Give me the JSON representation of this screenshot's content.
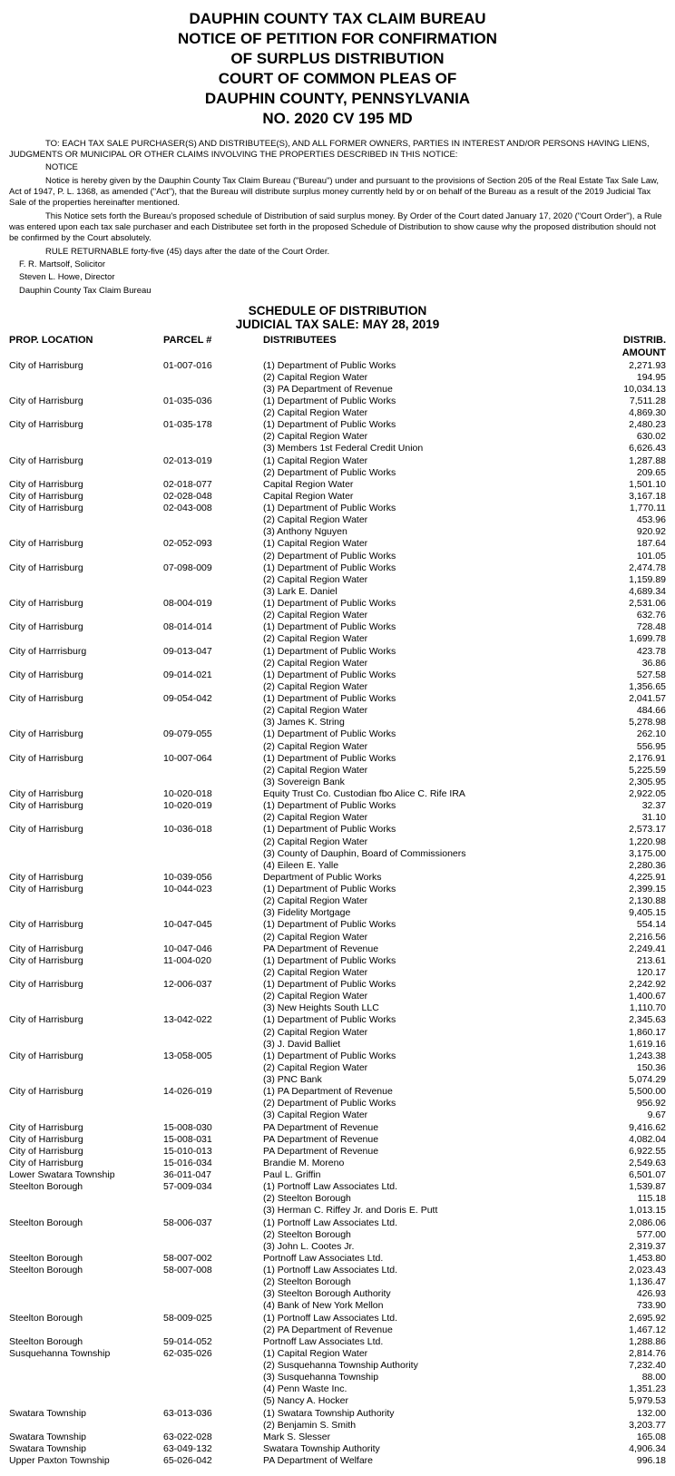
{
  "header": {
    "l1": "DAUPHIN COUNTY TAX CLAIM BUREAU",
    "l2": "NOTICE OF PETITION FOR CONFIRMATION",
    "l3": "OF SURPLUS DISTRIBUTION",
    "l4": "COURT OF COMMON PLEAS OF",
    "l5": "DAUPHIN COUNTY, PENNSYLVANIA",
    "l6": "NO.  2020 CV 195 MD"
  },
  "notice": {
    "p1": "TO:  EACH TAX SALE PURCHASER(S) AND DISTRIBUTEE(S), AND ALL FORMER OWNERS, PARTIES IN INTEREST AND/OR PERSONS HAVING LIENS, JUDGMENTS OR MUNICIPAL OR OTHER CLAIMS INVOLVING THE PROPERTIES DESCRIBED IN THIS NOTICE:",
    "p2": "NOTICE",
    "p3": "Notice is hereby given by the Dauphin County Tax Claim Bureau (\"Bureau\") under and pursuant to the provisions of Section 205 of the Real Estate Tax Sale Law, Act of 1947, P. L. 1368, as amended (\"Act\"), that the Bureau will distribute surplus money currently held by or on behalf of the Bureau as a result of the 2019 Judicial Tax Sale of the properties hereinafter mentioned.",
    "p4": "This Notice sets forth the Bureau's proposed schedule of Distribution of said surplus money.  By Order of the Court dated January 17, 2020 (\"Court Order\"), a Rule was entered upon each tax sale purchaser and each Distributee set forth in the proposed Schedule of Distribution to show cause why the proposed distribution should not be confirmed by the Court absolutely.",
    "p5": "RULE RETURNABLE forty-five (45) days after the date of the Court Order.",
    "s1": "F. R. Martsolf, Solicitor",
    "s2": "Steven L. Howe, Director",
    "s3": "Dauphin County Tax Claim Bureau"
  },
  "schedule": {
    "title": "SCHEDULE OF DISTRIBUTION",
    "sub": "JUDICIAL TAX SALE:   MAY 28, 2019",
    "cols": {
      "loc": "PROP. LOCATION",
      "parcel": "PARCEL #",
      "dist": "DISTRIBUTEES",
      "amt": "DISTRIB.  AMOUNT"
    },
    "rows": [
      {
        "loc": "City of Harrisburg",
        "parcel": "01-007-016",
        "d": [
          [
            "(1) Department of Public Works",
            "2,271.93"
          ],
          [
            "(2) Capital Region Water",
            "194.95"
          ],
          [
            "(3) PA Department of Revenue",
            "10,034.13"
          ]
        ]
      },
      {
        "loc": "City of Harrisburg",
        "parcel": "01-035-036",
        "d": [
          [
            "(1) Department of Public Works",
            "7,511.28"
          ],
          [
            "(2) Capital Region Water",
            "4,869.30"
          ]
        ]
      },
      {
        "loc": "City of Harrisburg",
        "parcel": "01-035-178",
        "d": [
          [
            "(1) Department of Public Works",
            "2,480.23"
          ],
          [
            "(2) Capital Region Water",
            "630.02"
          ],
          [
            "(3) Members 1st Federal Credit Union",
            "6,626.43"
          ]
        ]
      },
      {
        "loc": "City of Harrisburg",
        "parcel": "02-013-019",
        "d": [
          [
            "(1) Capital Region Water",
            "1,287.88"
          ],
          [
            "(2) Department of Public Works",
            "209.65"
          ]
        ]
      },
      {
        "loc": "City of Harrisburg",
        "parcel": "02-018-077",
        "d": [
          [
            "Capital Region Water",
            "1,501.10"
          ]
        ]
      },
      {
        "loc": "City of Harrisburg",
        "parcel": "02-028-048",
        "d": [
          [
            "Capital Region Water",
            "3,167.18"
          ]
        ]
      },
      {
        "loc": "City of Harrisburg",
        "parcel": "02-043-008",
        "d": [
          [
            "(1) Department of Public Works",
            "1,770.11"
          ],
          [
            "(2) Capital Region Water",
            "453.96"
          ],
          [
            "(3) Anthony Nguyen",
            "920.92"
          ]
        ]
      },
      {
        "loc": "City of Harrisburg",
        "parcel": "02-052-093",
        "d": [
          [
            "(1) Capital Region Water",
            "187.64"
          ],
          [
            "(2) Department of Public Works",
            "101.05"
          ]
        ]
      },
      {
        "loc": "City of Harrisburg",
        "parcel": "07-098-009",
        "d": [
          [
            "(1) Department of Public Works",
            "2,474.78"
          ],
          [
            "(2) Capital Region Water",
            "1,159.89"
          ],
          [
            "(3) Lark E. Daniel",
            "4,689.34"
          ]
        ]
      },
      {
        "loc": "City of Harrisburg",
        "parcel": "08-004-019",
        "d": [
          [
            "(1) Department of Public Works",
            "2,531.06"
          ],
          [
            "(2) Capital Region Water",
            "632.76"
          ]
        ]
      },
      {
        "loc": "City of Harrisburg",
        "parcel": "08-014-014",
        "d": [
          [
            "(1) Department of Public Works",
            "728.48"
          ],
          [
            "(2) Capital Region Water",
            "1,699.78"
          ]
        ]
      },
      {
        "loc": "City of Harrrisburg",
        "parcel": "09-013-047",
        "d": [
          [
            "(1) Department of Public Works",
            "423.78"
          ],
          [
            "(2) Capital Region Water",
            "36.86"
          ]
        ]
      },
      {
        "loc": "City of Harrisburg",
        "parcel": "09-014-021",
        "d": [
          [
            "(1) Department of Public Works",
            "527.58"
          ],
          [
            "(2) Capital Region Water",
            "1,356.65"
          ]
        ]
      },
      {
        "loc": "City of Harrisburg",
        "parcel": "09-054-042",
        "d": [
          [
            "(1) Department of Public Works",
            "2,041.57"
          ],
          [
            "(2) Capital Region Water",
            "484.66"
          ],
          [
            "(3) James K. String",
            "5,278.98"
          ]
        ]
      },
      {
        "loc": "City of Harrisburg",
        "parcel": "09-079-055",
        "d": [
          [
            "(1) Department of Public Works",
            "262.10"
          ],
          [
            "(2) Capital Region Water",
            "556.95"
          ]
        ]
      },
      {
        "loc": "City of Harrisburg",
        "parcel": "10-007-064",
        "d": [
          [
            "(1) Department of Public Works",
            "2,176.91"
          ],
          [
            "(2) Capital Region Water",
            "5,225.59"
          ],
          [
            "(3) Sovereign Bank",
            "2,305.95"
          ]
        ]
      },
      {
        "loc": "City of Harrisburg",
        "parcel": "10-020-018",
        "d": [
          [
            "Equity Trust Co. Custodian fbo Alice C. Rife IRA",
            "2,922.05"
          ]
        ]
      },
      {
        "loc": "City of Harrisburg",
        "parcel": "10-020-019",
        "d": [
          [
            "(1) Department of Public Works",
            "32.37"
          ],
          [
            "(2) Capital Region Water",
            "31.10"
          ]
        ]
      },
      {
        "loc": "City of Harrisburg",
        "parcel": "10-036-018",
        "d": [
          [
            "(1) Department of Public Works",
            "2,573.17"
          ],
          [
            "(2) Capital Region Water",
            "1,220.98"
          ],
          [
            "(3) County of Dauphin, Board of Commissioners",
            "3,175.00"
          ],
          [
            "(4) Eileen E. Yalle",
            "2,280.36"
          ]
        ]
      },
      {
        "loc": "City of Harrisburg",
        "parcel": "10-039-056",
        "d": [
          [
            "Department of Public Works",
            "4,225.91"
          ]
        ]
      },
      {
        "loc": "City of Harrisburg",
        "parcel": "10-044-023",
        "d": [
          [
            "(1) Department of Public Works",
            "2,399.15"
          ],
          [
            "(2) Capital Region Water",
            "2,130.88"
          ],
          [
            "(3) Fidelity Mortgage",
            "9,405.15"
          ]
        ]
      },
      {
        "loc": "City of Harrisburg",
        "parcel": "10-047-045",
        "d": [
          [
            "(1) Department of Public Works",
            "554.14"
          ],
          [
            "(2) Capital Region Water",
            "2,216.56"
          ]
        ]
      },
      {
        "loc": "City of Harrisburg",
        "parcel": "10-047-046",
        "d": [
          [
            "PA Department of Revenue",
            "2,249.41"
          ]
        ]
      },
      {
        "loc": "City of Harrisburg",
        "parcel": "11-004-020",
        "d": [
          [
            "(1) Department of Public Works",
            "213.61"
          ],
          [
            "(2) Capital Region Water",
            "120.17"
          ]
        ]
      },
      {
        "loc": "City of Harrisburg",
        "parcel": "12-006-037",
        "d": [
          [
            "(1) Department of Public Works",
            "2,242.92"
          ],
          [
            "(2) Capital Region Water",
            "1,400.67"
          ],
          [
            "(3) New Heights South LLC",
            "1,110.70"
          ]
        ]
      },
      {
        "loc": "City of Harrisburg",
        "parcel": "13-042-022",
        "d": [
          [
            "(1) Department of Public Works",
            "2,345.63"
          ],
          [
            "(2) Capital Region Water",
            "1,860.17"
          ],
          [
            "(3) J. David Balliet",
            "1,619.16"
          ]
        ]
      },
      {
        "loc": "City of Harrisburg",
        "parcel": "13-058-005",
        "d": [
          [
            "(1) Department of Public Works",
            "1,243.38"
          ],
          [
            "(2) Capital Region Water",
            "150.36"
          ],
          [
            "(3) PNC Bank",
            "5,074.29"
          ]
        ]
      },
      {
        "loc": "City of Harrisburg",
        "parcel": "14-026-019",
        "d": [
          [
            "(1) PA Department of Revenue",
            "5,500.00"
          ],
          [
            "(2) Department of Public Works",
            "956.92"
          ],
          [
            "(3) Capital Region Water",
            "9.67"
          ]
        ]
      },
      {
        "loc": "City of Harrisburg",
        "parcel": "15-008-030",
        "d": [
          [
            "PA Department of Revenue",
            "9,416.62"
          ]
        ]
      },
      {
        "loc": "City of Harrisburg",
        "parcel": "15-008-031",
        "d": [
          [
            "PA Department of Revenue",
            "4,082.04"
          ]
        ]
      },
      {
        "loc": "City of Harrisburg",
        "parcel": "15-010-013",
        "d": [
          [
            "PA Department of Revenue",
            "6,922.55"
          ]
        ]
      },
      {
        "loc": "City of Harrisburg",
        "parcel": "15-016-034",
        "d": [
          [
            "Brandie M. Moreno",
            "2,549.63"
          ]
        ]
      },
      {
        "loc": "Lower Swatara Township",
        "parcel": "36-011-047",
        "d": [
          [
            "Paul L. Griffin",
            "6,501.07"
          ]
        ]
      },
      {
        "loc": "Steelton Borough",
        "parcel": "57-009-034",
        "d": [
          [
            "(1) Portnoff Law Associates Ltd.",
            "1,539.87"
          ],
          [
            "(2) Steelton Borough",
            "115.18"
          ],
          [
            "(3) Herman C. Riffey Jr. and Doris E. Putt",
            "1,013.15"
          ]
        ]
      },
      {
        "loc": "Steelton Borough",
        "parcel": "58-006-037",
        "d": [
          [
            "(1) Portnoff Law Associates Ltd.",
            "2,086.06"
          ],
          [
            "(2) Steelton Borough",
            "577.00"
          ],
          [
            "(3) John L. Cootes Jr.",
            "2,319.37"
          ]
        ]
      },
      {
        "loc": "Steelton Borough",
        "parcel": "58-007-002",
        "d": [
          [
            "Portnoff Law Associates Ltd.",
            "1,453.80"
          ]
        ]
      },
      {
        "loc": "Steelton Borough",
        "parcel": "58-007-008",
        "d": [
          [
            "(1) Portnoff Law Associates Ltd.",
            "2,023.43"
          ],
          [
            "(2) Steelton Borough",
            "1,136.47"
          ],
          [
            "(3) Steelton Borough Authority",
            "426.93"
          ],
          [
            "(4) Bank of New York Mellon",
            "733.90"
          ]
        ]
      },
      {
        "loc": "Steelton Borough",
        "parcel": "58-009-025",
        "d": [
          [
            "(1) Portnoff Law Associates Ltd.",
            "2,695.92"
          ],
          [
            "(2) PA Department of Revenue",
            "1,467.12"
          ]
        ]
      },
      {
        "loc": "Steelton Borough",
        "parcel": "59-014-052",
        "d": [
          [
            "Portnoff Law Associates Ltd.",
            "1,288.86"
          ]
        ]
      },
      {
        "loc": "Susquehanna Township",
        "parcel": "62-035-026",
        "d": [
          [
            "(1) Capital Region Water",
            "2,814.76"
          ],
          [
            "(2) Susquehanna Township Authority",
            "7,232.40"
          ],
          [
            "(3) Susquehanna Township",
            "88.00"
          ],
          [
            "(4) Penn Waste Inc.",
            "1,351.23"
          ],
          [
            "(5) Nancy A. Hocker",
            "5,979.53"
          ]
        ]
      },
      {
        "loc": "Swatara Township",
        "parcel": "63-013-036",
        "d": [
          [
            "(1) Swatara Township Authority",
            "132.00"
          ],
          [
            "(2) Benjamin S. Smith",
            "3,203.77"
          ]
        ]
      },
      {
        "loc": "Swatara Township",
        "parcel": "63-022-028",
        "d": [
          [
            "Mark S. Slesser",
            "165.08"
          ]
        ]
      },
      {
        "loc": "Swatara Township",
        "parcel": "63-049-132",
        "d": [
          [
            "Swatara Township Authority",
            "4,906.34"
          ]
        ]
      },
      {
        "loc": "Upper Paxton Township",
        "parcel": "65-026-042",
        "d": [
          [
            "PA Department of Welfare",
            "996.18"
          ]
        ]
      }
    ]
  }
}
